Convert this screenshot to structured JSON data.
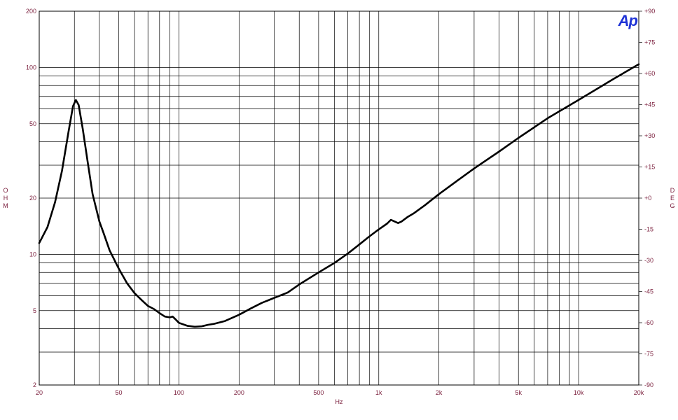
{
  "chart_data": {
    "type": "line",
    "title": "",
    "logo": "Ap",
    "xlabel": "Hz",
    "ylabel": "OHM",
    "y2label": "DEG",
    "xscale": "log",
    "yscale": "log",
    "xlim": [
      20,
      20000
    ],
    "ylim": [
      2,
      200
    ],
    "y2lim": [
      -90,
      90
    ],
    "grid": true,
    "x_ticks": [
      {
        "value": 20,
        "label": "20"
      },
      {
        "value": 50,
        "label": "50"
      },
      {
        "value": 100,
        "label": "100"
      },
      {
        "value": 200,
        "label": "200"
      },
      {
        "value": 500,
        "label": "500"
      },
      {
        "value": 1000,
        "label": "1k"
      },
      {
        "value": 2000,
        "label": "2k"
      },
      {
        "value": 5000,
        "label": "5k"
      },
      {
        "value": 10000,
        "label": "10k"
      },
      {
        "value": 20000,
        "label": "20k"
      }
    ],
    "x_minor_grid": [
      30,
      40,
      60,
      70,
      80,
      90,
      300,
      400,
      600,
      700,
      800,
      900,
      3000,
      4000,
      6000,
      7000,
      8000,
      9000
    ],
    "y_ticks": [
      {
        "value": 2,
        "label": "2"
      },
      {
        "value": 5,
        "label": "5"
      },
      {
        "value": 10,
        "label": "10"
      },
      {
        "value": 20,
        "label": "20"
      },
      {
        "value": 50,
        "label": "50"
      },
      {
        "value": 100,
        "label": "100"
      },
      {
        "value": 200,
        "label": "200"
      }
    ],
    "y_minor_grid": [
      3,
      4,
      6,
      7,
      8,
      9,
      30,
      40,
      60,
      70,
      80,
      90
    ],
    "y2_ticks": [
      {
        "value": 90,
        "label": "+90"
      },
      {
        "value": 75,
        "label": "+75"
      },
      {
        "value": 60,
        "label": "+60"
      },
      {
        "value": 45,
        "label": "+45"
      },
      {
        "value": 30,
        "label": "+30"
      },
      {
        "value": 15,
        "label": "+15"
      },
      {
        "value": 0,
        "label": "+0"
      },
      {
        "value": -15,
        "label": "-15"
      },
      {
        "value": -30,
        "label": "-30"
      },
      {
        "value": -45,
        "label": "-45"
      },
      {
        "value": -60,
        "label": "-60"
      },
      {
        "value": -75,
        "label": "-75"
      },
      {
        "value": -90,
        "label": "-90"
      }
    ],
    "series": [
      {
        "name": "",
        "x": [
          20,
          22,
          24,
          26,
          28,
          29.5,
          30.5,
          31.5,
          33,
          35,
          37,
          40,
          42,
          45,
          50,
          55,
          60,
          65,
          70,
          75,
          80,
          85,
          90,
          93,
          96,
          100,
          110,
          120,
          130,
          140,
          150,
          170,
          200,
          230,
          260,
          300,
          350,
          400,
          500,
          600,
          700,
          800,
          900,
          1000,
          1100,
          1150,
          1200,
          1250,
          1300,
          1400,
          1500,
          1700,
          2000,
          2500,
          3000,
          4000,
          5000,
          7000,
          10000,
          15000,
          20000
        ],
        "y": [
          11.5,
          14,
          19,
          28,
          45,
          62,
          67,
          63,
          47,
          31,
          21,
          15,
          13,
          10.5,
          8.4,
          7,
          6.2,
          5.7,
          5.3,
          5.1,
          4.85,
          4.65,
          4.6,
          4.65,
          4.5,
          4.3,
          4.15,
          4.1,
          4.12,
          4.2,
          4.25,
          4.4,
          4.75,
          5.15,
          5.5,
          5.85,
          6.25,
          6.9,
          8.0,
          9.0,
          10.1,
          11.3,
          12.5,
          13.6,
          14.6,
          15.3,
          15.0,
          14.7,
          15.0,
          15.9,
          16.6,
          18.3,
          21.0,
          25.0,
          28.8,
          35.5,
          42.0,
          53.5,
          67.0,
          87.0,
          104.0
        ]
      }
    ]
  }
}
